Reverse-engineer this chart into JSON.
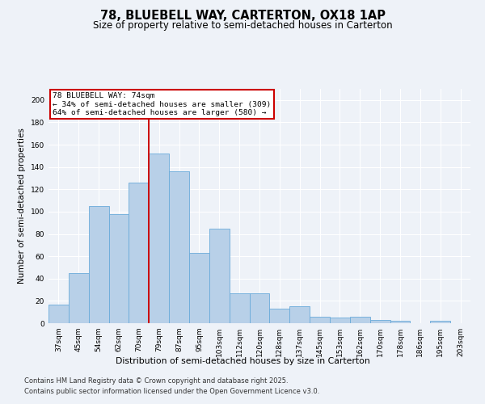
{
  "title": "78, BLUEBELL WAY, CARTERTON, OX18 1AP",
  "subtitle": "Size of property relative to semi-detached houses in Carterton",
  "xlabel": "Distribution of semi-detached houses by size in Carterton",
  "ylabel": "Number of semi-detached properties",
  "categories": [
    "37sqm",
    "45sqm",
    "54sqm",
    "62sqm",
    "70sqm",
    "79sqm",
    "87sqm",
    "95sqm",
    "103sqm",
    "112sqm",
    "120sqm",
    "128sqm",
    "137sqm",
    "145sqm",
    "153sqm",
    "162sqm",
    "170sqm",
    "178sqm",
    "186sqm",
    "195sqm",
    "203sqm"
  ],
  "values": [
    17,
    45,
    105,
    98,
    126,
    152,
    136,
    63,
    85,
    27,
    27,
    13,
    15,
    6,
    5,
    6,
    3,
    2,
    0,
    2,
    0
  ],
  "bar_color": "#b8d0e8",
  "bar_edge_color": "#6aabda",
  "red_line_x": 4.5,
  "annotation_title": "78 BLUEBELL WAY: 74sqm",
  "annotation_line1": "← 34% of semi-detached houses are smaller (309)",
  "annotation_line2": "64% of semi-detached houses are larger (580) →",
  "annotation_box_color": "#ffffff",
  "annotation_box_edge_color": "#cc0000",
  "red_line_color": "#cc0000",
  "ylim": [
    0,
    210
  ],
  "yticks": [
    0,
    20,
    40,
    60,
    80,
    100,
    120,
    140,
    160,
    180,
    200
  ],
  "footer1": "Contains HM Land Registry data © Crown copyright and database right 2025.",
  "footer2": "Contains public sector information licensed under the Open Government Licence v3.0.",
  "background_color": "#eef2f8",
  "plot_background_color": "#eef2f8",
  "title_fontsize": 10.5,
  "subtitle_fontsize": 8.5,
  "axis_label_fontsize": 7.5,
  "tick_fontsize": 6.5,
  "footer_fontsize": 6.0,
  "annotation_fontsize": 6.8
}
